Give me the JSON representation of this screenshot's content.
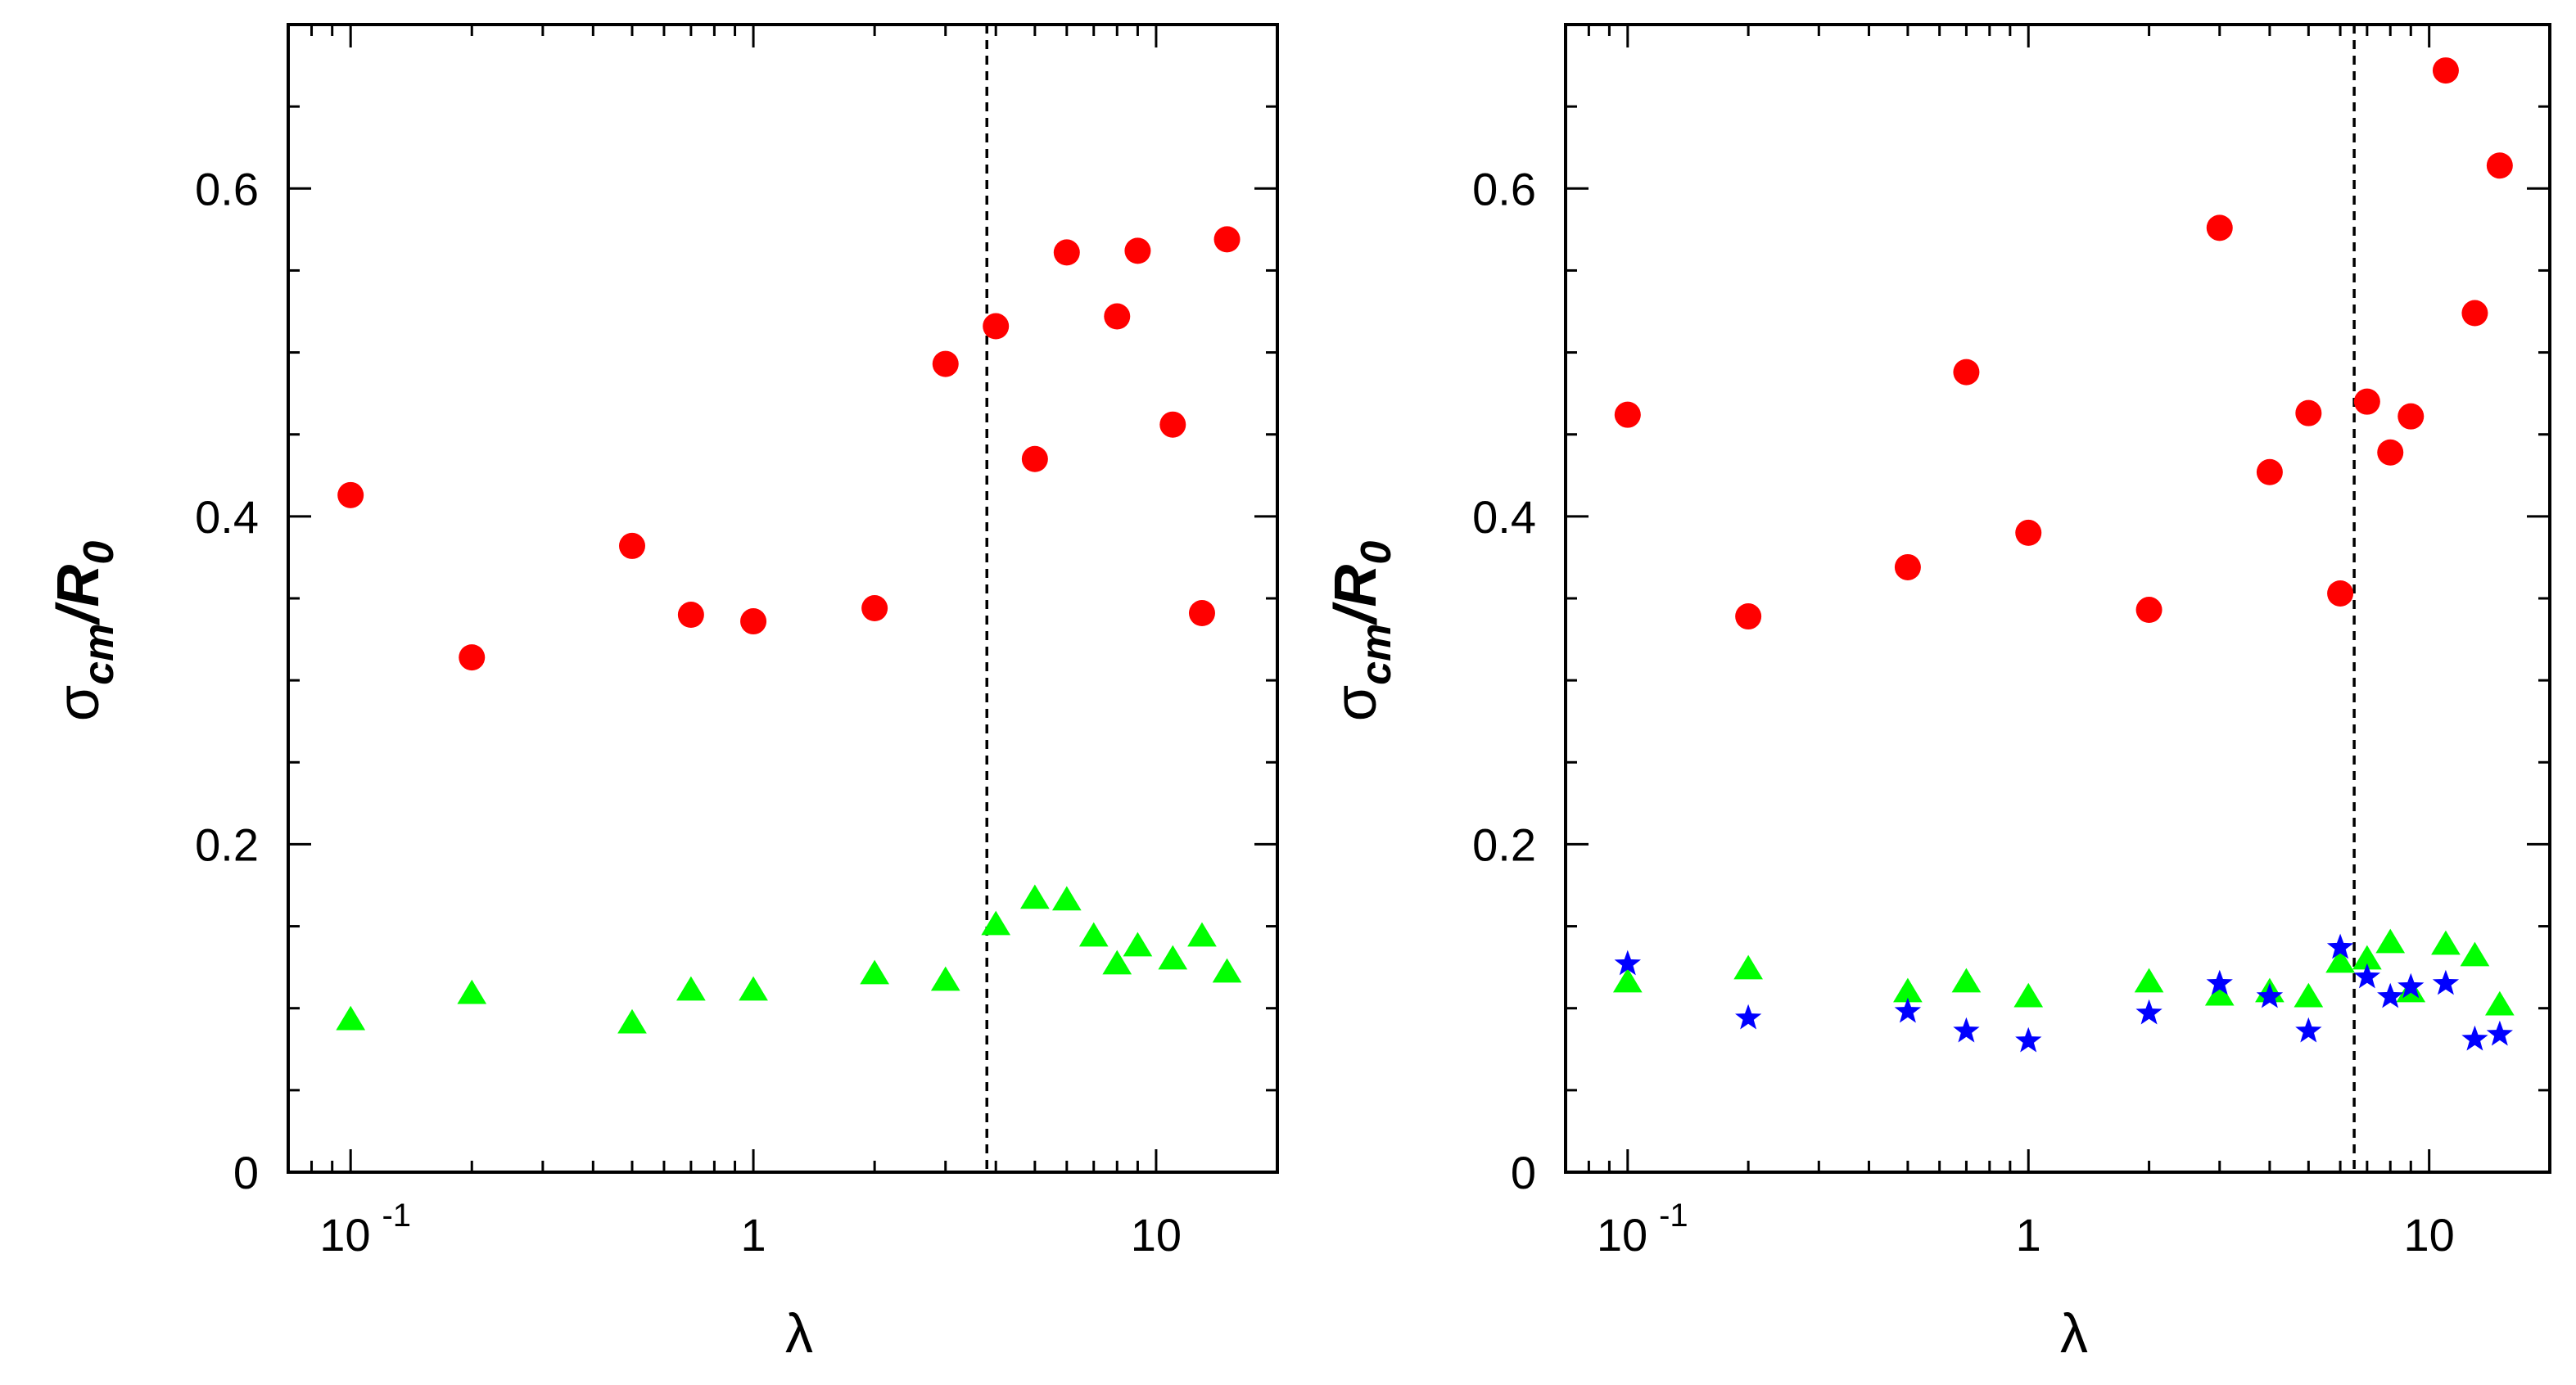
{
  "chart_data": [
    {
      "type": "scatter",
      "panel": "left",
      "xscale": "log",
      "xlim": [
        0.07,
        20
      ],
      "ylim": [
        0,
        0.7
      ],
      "xlabel": "λ",
      "ylabel": {
        "main": "σ",
        "sub": "cm",
        "mid": "/R",
        "sub2": "0"
      },
      "xticks": [
        {
          "value": 0.1,
          "base": "10",
          "exp": "-1"
        },
        {
          "value": 1,
          "base": "1",
          "exp": ""
        },
        {
          "value": 10,
          "base": "10",
          "exp": ""
        }
      ],
      "yticks": [
        {
          "value": 0,
          "label": "0"
        },
        {
          "value": 0.2,
          "label": "0.2"
        },
        {
          "value": 0.4,
          "label": "0.4"
        },
        {
          "value": 0.6,
          "label": "0.6"
        }
      ],
      "vline": 3.8,
      "series": [
        {
          "name": "circles",
          "marker": "circle",
          "color": "#ff0000",
          "x": [
            0.1,
            0.2,
            0.5,
            0.7,
            1,
            2,
            3,
            4,
            5,
            6,
            8,
            9,
            11,
            13,
            15
          ],
          "y": [
            0.413,
            0.314,
            0.382,
            0.34,
            0.336,
            0.344,
            0.493,
            0.516,
            0.435,
            0.561,
            0.522,
            0.562,
            0.456,
            0.341,
            0.569
          ]
        },
        {
          "name": "triangles",
          "marker": "triangle",
          "color": "#00ff00",
          "x": [
            0.1,
            0.2,
            0.5,
            0.7,
            1,
            2,
            3,
            4,
            5,
            6,
            7,
            8,
            9,
            11,
            13,
            15
          ],
          "y": [
            0.093,
            0.109,
            0.091,
            0.111,
            0.111,
            0.121,
            0.117,
            0.151,
            0.167,
            0.166,
            0.144,
            0.127,
            0.138,
            0.13,
            0.144,
            0.122
          ]
        }
      ]
    },
    {
      "type": "scatter",
      "panel": "right",
      "xscale": "log",
      "xlim": [
        0.07,
        20
      ],
      "ylim": [
        0,
        0.7
      ],
      "xlabel": "λ",
      "ylabel": {
        "main": "σ",
        "sub": "cm",
        "mid": "/R",
        "sub2": "0"
      },
      "xticks": [
        {
          "value": 0.1,
          "base": "10",
          "exp": "-1"
        },
        {
          "value": 1,
          "base": "1",
          "exp": ""
        },
        {
          "value": 10,
          "base": "10",
          "exp": ""
        }
      ],
      "yticks": [
        {
          "value": 0,
          "label": "0"
        },
        {
          "value": 0.2,
          "label": "0.2"
        },
        {
          "value": 0.4,
          "label": "0.4"
        },
        {
          "value": 0.6,
          "label": "0.6"
        }
      ],
      "vline": 6.5,
      "series": [
        {
          "name": "circles",
          "marker": "circle",
          "color": "#ff0000",
          "x": [
            0.1,
            0.2,
            0.5,
            0.7,
            1,
            2,
            3,
            4,
            5,
            6,
            7,
            8,
            9,
            11,
            13,
            15
          ],
          "y": [
            0.462,
            0.339,
            0.369,
            0.488,
            0.39,
            0.343,
            0.576,
            0.427,
            0.463,
            0.353,
            0.47,
            0.439,
            0.461,
            0.672,
            0.524,
            0.614
          ]
        },
        {
          "name": "triangles",
          "marker": "triangle",
          "color": "#00ff00",
          "x": [
            0.1,
            0.2,
            0.5,
            0.7,
            1,
            2,
            3,
            4,
            5,
            6,
            7,
            8,
            9,
            11,
            13,
            15
          ],
          "y": [
            0.116,
            0.124,
            0.11,
            0.116,
            0.107,
            0.116,
            0.108,
            0.11,
            0.107,
            0.128,
            0.13,
            0.14,
            0.11,
            0.139,
            0.132,
            0.102
          ]
        },
        {
          "name": "stars",
          "marker": "star",
          "color": "#0000ff",
          "x": [
            0.1,
            0.2,
            0.5,
            0.7,
            1,
            2,
            3,
            4,
            5,
            6,
            7,
            8,
            9,
            11,
            13,
            15
          ],
          "y": [
            0.127,
            0.094,
            0.098,
            0.086,
            0.08,
            0.097,
            0.115,
            0.107,
            0.086,
            0.137,
            0.119,
            0.107,
            0.113,
            0.115,
            0.081,
            0.084
          ]
        }
      ]
    }
  ]
}
